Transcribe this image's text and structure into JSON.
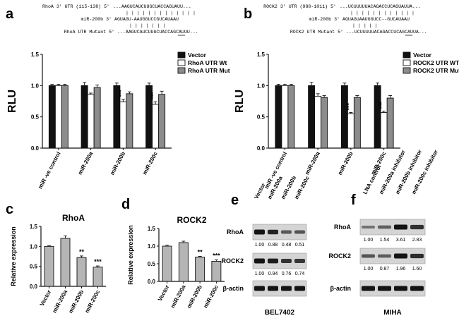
{
  "panel_labels": {
    "a": "a",
    "b": "b",
    "c": "c",
    "d": "d",
    "e": "e",
    "f": "f"
  },
  "sequences": {
    "a": {
      "wt_name": "RhoA 3' UTR (115-138)  5'",
      "wt_seq": "...AAGUCAUCUUGCUACCAGUAUU...",
      "pair1": "| | | |   | | | | | | | | |",
      "mir_name": "miR-200b 3'",
      "mir_seq": "AGUAGU-AAUGGUCCGUCAUAAU",
      "pair2": "| | |   | | | |",
      "mut_name": "RhoA UTR Mutant 5'",
      "mut_seq": "...AAGUCAUCUUGCUACCAGCAUUU..."
    },
    "b": {
      "wt_name": "ROCK2 3' UTR (988-1011)  5'",
      "wt_seq": "...UCUUUUUACAGACCUCAGUAUUA...",
      "pair1": "| | | |       | | | | | | | |",
      "mir_name": "miR-200b 3'",
      "mir_seq": "AGUAGUAAUGGUCC--GUCAUAAU",
      "pair2": "| | | |       |",
      "mut_name": "ROCK2 UTR Mutant 5'",
      "mut_seq": "...UCUUUUUACAGACCUCAGCAUUA..."
    }
  },
  "chart_data": [
    {
      "id": "a",
      "type": "bar",
      "title": "",
      "xlabel": "",
      "ylabel": "RLU",
      "ylim": [
        0,
        1.5
      ],
      "yticks": [
        "0.0",
        "0.5",
        "1.0",
        "1.5"
      ],
      "categories": [
        "miR -ve control",
        "miR-200a",
        "miR-200b",
        "miR-200c"
      ],
      "series": [
        {
          "name": "Vector",
          "color": "#111111",
          "values": [
            1.0,
            1.0,
            1.0,
            1.0
          ],
          "errors": [
            0.02,
            0.05,
            0.04,
            0.04
          ]
        },
        {
          "name": "RhoA UTR Wt",
          "color": "#ffffff",
          "values": [
            1.0,
            0.86,
            0.74,
            0.7
          ],
          "errors": [
            0.02,
            0.02,
            0.04,
            0.04
          ]
        },
        {
          "name": "RhoA UTR Mut",
          "color": "#8c8c8c",
          "values": [
            1.0,
            0.97,
            0.87,
            0.86
          ],
          "errors": [
            0.02,
            0.04,
            0.03,
            0.05
          ]
        }
      ],
      "annotations": [
        "",
        "",
        "***",
        "***"
      ]
    },
    {
      "id": "b",
      "type": "bar",
      "title": "",
      "xlabel": "",
      "ylabel": "RLU",
      "ylim": [
        0,
        1.5
      ],
      "yticks": [
        "0.0",
        "0.5",
        "1.0",
        "1.5"
      ],
      "categories": [
        "miR -ve control",
        "miR-200a",
        "miR-200b",
        "miR-200c"
      ],
      "series": [
        {
          "name": "Vector",
          "color": "#111111",
          "values": [
            1.0,
            1.0,
            1.0,
            1.0
          ],
          "errors": [
            0.02,
            0.05,
            0.04,
            0.04
          ]
        },
        {
          "name": "ROCK2 UTR WT",
          "color": "#ffffff",
          "values": [
            1.0,
            0.83,
            0.55,
            0.57
          ],
          "errors": [
            0.02,
            0.04,
            0.02,
            0.02
          ]
        },
        {
          "name": "ROCK2 UTR Mut",
          "color": "#8c8c8c",
          "values": [
            1.0,
            0.81,
            0.81,
            0.8
          ],
          "errors": [
            0.02,
            0.03,
            0.03,
            0.04
          ]
        }
      ],
      "annotations": [
        "",
        "",
        "***",
        "***"
      ]
    },
    {
      "id": "c",
      "type": "bar",
      "title": "RhoA",
      "xlabel": "",
      "ylabel": "Relative expression",
      "ylim": [
        0,
        1.5
      ],
      "yticks": [
        "0.0",
        "0.5",
        "1.0",
        "1.5"
      ],
      "categories": [
        "Vector",
        "miR-200a",
        "miR-200b",
        "miR-200c"
      ],
      "series": [
        {
          "name": "RhoA",
          "color": "#b5b5b5",
          "values": [
            1.0,
            1.2,
            0.72,
            0.48
          ],
          "errors": [
            0.02,
            0.06,
            0.04,
            0.03
          ]
        }
      ],
      "annotations": [
        "",
        "",
        "**",
        "***"
      ]
    },
    {
      "id": "d",
      "type": "bar",
      "title": "ROCK2",
      "xlabel": "",
      "ylabel": "Relative expression",
      "ylim": [
        0,
        1.5
      ],
      "yticks": [
        "0.0",
        "0.5",
        "1.0",
        "1.5"
      ],
      "categories": [
        "Vector",
        "miR-200a",
        "miR-200b",
        "miR-200c"
      ],
      "series": [
        {
          "name": "ROCK2",
          "color": "#b5b5b5",
          "values": [
            1.0,
            1.1,
            0.69,
            0.57
          ],
          "errors": [
            0.03,
            0.04,
            0.02,
            0.04
          ]
        }
      ],
      "annotations": [
        "",
        "",
        "**",
        "***"
      ]
    }
  ],
  "blots": {
    "e": {
      "cell_line": "BEL7402",
      "lanes": [
        "Vector",
        "miR-200a",
        "miR-200b",
        "miR-200c"
      ],
      "rows": [
        {
          "name": "RhoA",
          "intensities": [
            1.0,
            0.88,
            0.48,
            0.51
          ],
          "labels": [
            "1.00",
            "0.88",
            "0.48",
            "0.51"
          ]
        },
        {
          "name": "ROCK2",
          "intensities": [
            1.0,
            0.94,
            0.76,
            0.74
          ],
          "labels": [
            "1.00",
            "0.94",
            "0.76",
            "0.74"
          ]
        },
        {
          "name": "β-actin",
          "intensities": [
            1.0,
            1.0,
            1.0,
            1.0
          ],
          "labels": []
        }
      ]
    },
    "f": {
      "cell_line": "MIHA",
      "lanes": [
        "LNA control",
        "miR-200a inhibitor",
        "miR-200b inhibitor",
        "miR-200c inhibitor"
      ],
      "rows": [
        {
          "name": "RhoA",
          "intensities": [
            1.0,
            1.54,
            3.61,
            2.83
          ],
          "labels": [
            "1.00",
            "1.54",
            "3.61",
            "2.83"
          ]
        },
        {
          "name": "ROCK2",
          "intensities": [
            1.0,
            0.87,
            1.96,
            1.6
          ],
          "labels": [
            "1.00",
            "0.87",
            "1.96",
            "1.60"
          ]
        },
        {
          "name": "β-actin",
          "intensities": [
            1.0,
            1.0,
            1.0,
            1.0
          ],
          "labels": []
        }
      ]
    }
  }
}
